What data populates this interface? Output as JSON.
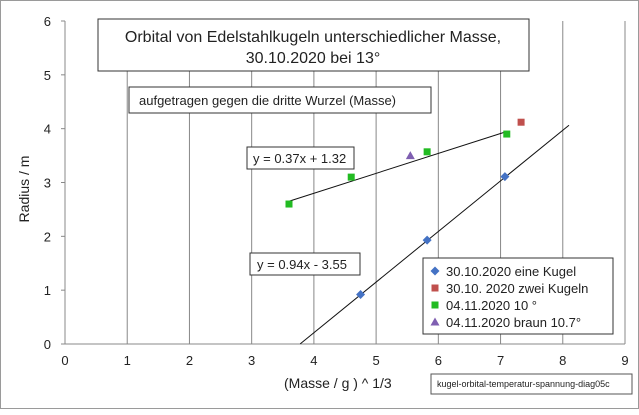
{
  "chart_data": {
    "type": "scatter",
    "title_lines": [
      "Orbital von Edelstahlkugeln unterschiedlicher Masse,",
      "30.10.2020  bei 13°"
    ],
    "annotation": "aufgetragen gegen die dritte Wurzel (Masse)",
    "xlabel": "(Masse / g )  ^ 1/3",
    "ylabel": "Radius / m",
    "xlim": [
      0,
      9
    ],
    "ylim": [
      0,
      6
    ],
    "xticks": [
      "0",
      "1",
      "2",
      "3",
      "4",
      "5",
      "6",
      "7",
      "8",
      "9"
    ],
    "yticks": [
      "0",
      "1",
      "2",
      "3",
      "4",
      "5",
      "6"
    ],
    "grid": "vertical",
    "legend_position": "bottom-right",
    "series": [
      {
        "name": "30.10.2020 eine Kugel",
        "marker": "diamond",
        "color": "#4472c4",
        "points": [
          {
            "x": 4.75,
            "y": 0.92
          },
          {
            "x": 5.82,
            "y": 1.93
          },
          {
            "x": 7.07,
            "y": 3.11
          }
        ]
      },
      {
        "name": "30.10. 2020 zwei Kugeln",
        "marker": "square",
        "color": "#c0504d",
        "points": [
          {
            "x": 7.33,
            "y": 4.12
          }
        ]
      },
      {
        "name": "04.11.2020 10 °",
        "marker": "square",
        "color": "#22bb22",
        "points": [
          {
            "x": 3.6,
            "y": 2.6
          },
          {
            "x": 4.6,
            "y": 3.1
          },
          {
            "x": 5.82,
            "y": 3.57
          },
          {
            "x": 7.1,
            "y": 3.9
          }
        ]
      },
      {
        "name": "04.11.2020 braun 10.7°",
        "marker": "triangle",
        "color": "#7f5fb1",
        "points": [
          {
            "x": 5.55,
            "y": 3.5
          }
        ]
      }
    ],
    "trendlines": [
      {
        "equation": "y = 0.37x + 1.32",
        "slope": 0.37,
        "intercept": 1.32,
        "x_range": [
          3.6,
          7.1
        ]
      },
      {
        "equation": "y = 0.94x - 3.55",
        "slope": 0.94,
        "intercept": -3.55,
        "x_range": [
          3.78,
          8.1
        ]
      }
    ]
  },
  "footer": {
    "filename": "kugel-orbital-temperatur-spannung-diag05c"
  }
}
